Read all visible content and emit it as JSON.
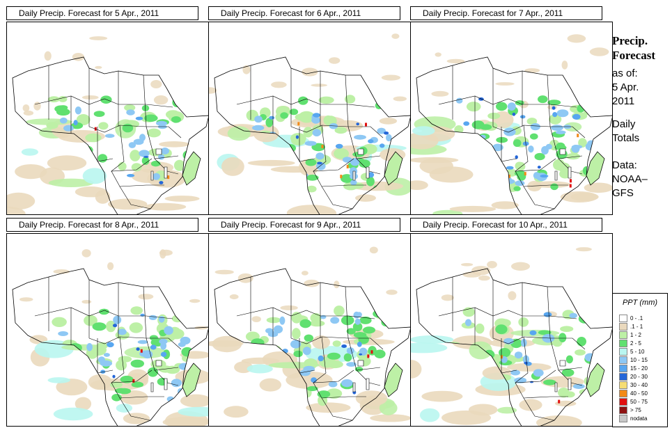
{
  "panels": [
    {
      "title": "Daily Precip. Forecast for  5 Apr., 2011",
      "rain": "light"
    },
    {
      "title": "Daily Precip. Forecast for  6 Apr., 2011",
      "rain": "heavy"
    },
    {
      "title": "Daily Precip. Forecast for  7 Apr., 2011",
      "rain": "heavy"
    },
    {
      "title": "Daily Precip. Forecast for  8 Apr., 2011",
      "rain": "medium"
    },
    {
      "title": "Daily Precip. Forecast for  9 Apr., 2011",
      "rain": "medium"
    },
    {
      "title": "Daily Precip. Forecast for  10 Apr., 2011",
      "rain": "light"
    }
  ],
  "sidebar": {
    "title_line1": "Precip.",
    "title_line2": "Forecast",
    "asof_label": "as of:",
    "asof_date": "5 Apr.",
    "asof_year": "2011",
    "totals_line1": "Daily",
    "totals_line2": "Totals",
    "data_line1": "Data:",
    "data_line2": "NOAA–",
    "data_line3": "GFS"
  },
  "legend": {
    "title": "PPT (mm)",
    "items": [
      {
        "label": "0 - .1",
        "color": "#ffffff"
      },
      {
        "label": ".1 - 1",
        "color": "#ead9bd"
      },
      {
        "label": "1 - 2",
        "color": "#bdf0a6"
      },
      {
        "label": "2 - 5",
        "color": "#60e070"
      },
      {
        "label": "5 - 10",
        "color": "#b9f6f0"
      },
      {
        "label": "10 - 15",
        "color": "#8ec8f4"
      },
      {
        "label": "15 - 20",
        "color": "#58a6f0"
      },
      {
        "label": "20 - 30",
        "color": "#2466d8"
      },
      {
        "label": "30 - 40",
        "color": "#f6dd73"
      },
      {
        "label": "40 - 50",
        "color": "#f28a18"
      },
      {
        "label": "50 - 75",
        "color": "#e21010"
      },
      {
        "label": "> 75",
        "color": "#8e1212"
      },
      {
        "label": "nodata",
        "color": "#c8c8c8"
      }
    ]
  }
}
